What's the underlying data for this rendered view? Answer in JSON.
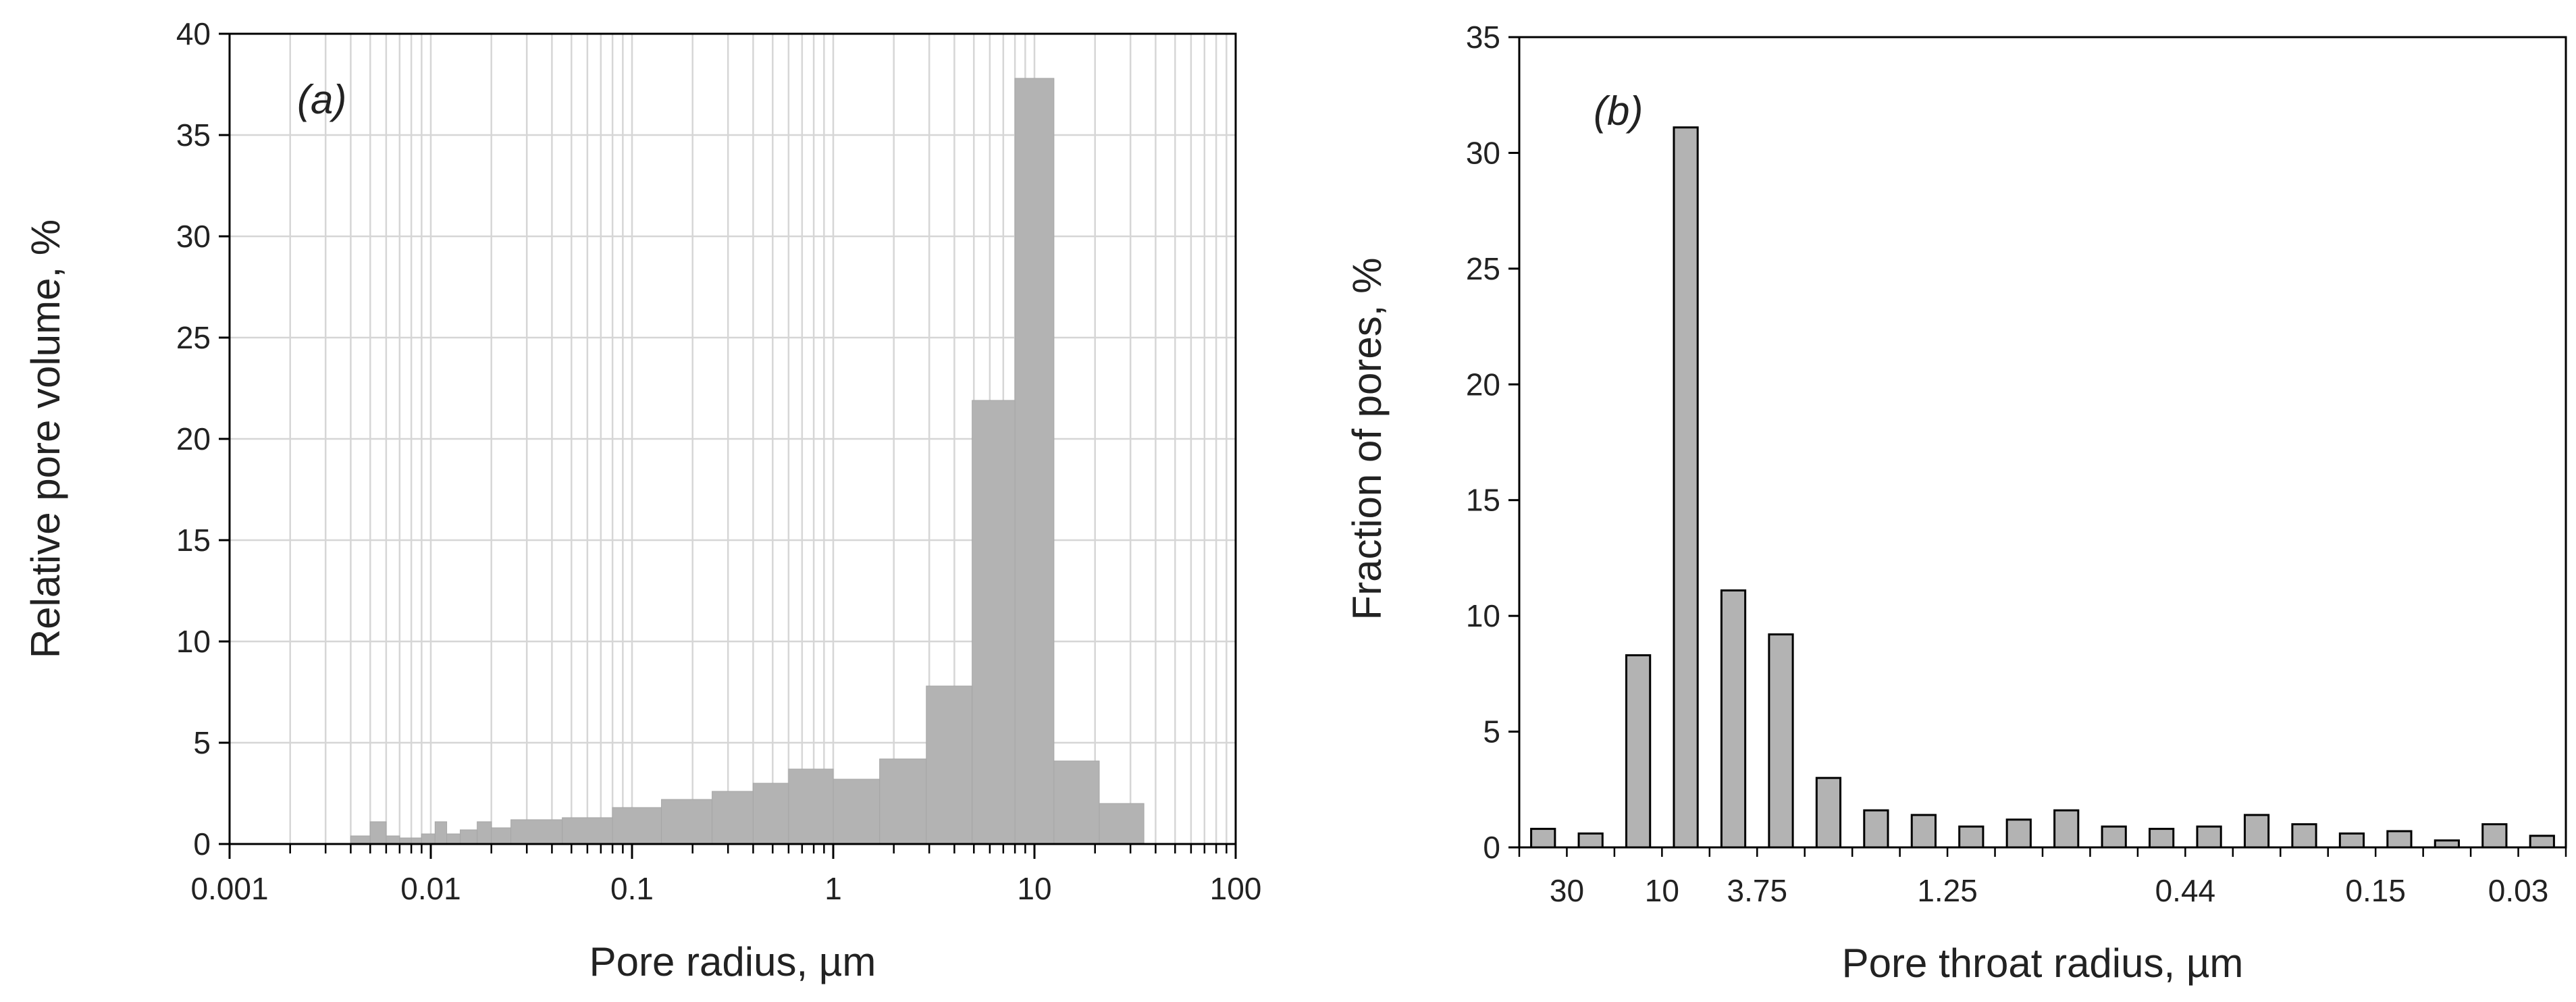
{
  "chart_data": [
    {
      "type": "bar",
      "panel_label": "(a)",
      "xlabel": "Pore radius, µm",
      "ylabel": "Relative pore volume, %",
      "x_scale": "log",
      "xlim": [
        0.001,
        100
      ],
      "ylim": [
        0,
        40
      ],
      "x_ticks": [
        "0.001",
        "0.01",
        "0.1",
        "1",
        "10",
        "100"
      ],
      "y_ticks": [
        "0",
        "5",
        "10",
        "15",
        "20",
        "25",
        "30",
        "35",
        "40"
      ],
      "grid": "on (major and minor, light gray)",
      "bar_color": "#b3b3b3",
      "bins": [
        {
          "x0": 0.004,
          "x1": 0.005,
          "value": 0.4
        },
        {
          "x0": 0.005,
          "x1": 0.006,
          "value": 1.1
        },
        {
          "x0": 0.006,
          "x1": 0.007,
          "value": 0.4
        },
        {
          "x0": 0.007,
          "x1": 0.008,
          "value": 0.3
        },
        {
          "x0": 0.008,
          "x1": 0.009,
          "value": 0.3
        },
        {
          "x0": 0.009,
          "x1": 0.0105,
          "value": 0.5
        },
        {
          "x0": 0.0105,
          "x1": 0.012,
          "value": 1.1
        },
        {
          "x0": 0.012,
          "x1": 0.014,
          "value": 0.5
        },
        {
          "x0": 0.014,
          "x1": 0.017,
          "value": 0.7
        },
        {
          "x0": 0.017,
          "x1": 0.02,
          "value": 1.1
        },
        {
          "x0": 0.02,
          "x1": 0.025,
          "value": 0.8
        },
        {
          "x0": 0.025,
          "x1": 0.045,
          "value": 1.2
        },
        {
          "x0": 0.045,
          "x1": 0.08,
          "value": 1.3
        },
        {
          "x0": 0.08,
          "x1": 0.14,
          "value": 1.8
        },
        {
          "x0": 0.14,
          "x1": 0.25,
          "value": 2.2
        },
        {
          "x0": 0.25,
          "x1": 0.4,
          "value": 2.6
        },
        {
          "x0": 0.4,
          "x1": 0.6,
          "value": 3.0
        },
        {
          "x0": 0.6,
          "x1": 1.0,
          "value": 3.7
        },
        {
          "x0": 1.0,
          "x1": 1.7,
          "value": 3.2
        },
        {
          "x0": 1.7,
          "x1": 2.9,
          "value": 4.2
        },
        {
          "x0": 2.9,
          "x1": 4.9,
          "value": 7.8
        },
        {
          "x0": 4.9,
          "x1": 8.0,
          "value": 21.9
        },
        {
          "x0": 8.0,
          "x1": 12.5,
          "value": 37.8
        },
        {
          "x0": 12.5,
          "x1": 21.0,
          "value": 4.1
        },
        {
          "x0": 21.0,
          "x1": 35.0,
          "value": 2.0
        }
      ]
    },
    {
      "type": "bar",
      "panel_label": "(b)",
      "xlabel": "Pore throat radius, µm",
      "ylabel": "Fraction of pores, %",
      "ylim": [
        0,
        35
      ],
      "y_ticks": [
        "0",
        "5",
        "10",
        "15",
        "20",
        "25",
        "30",
        "35"
      ],
      "x_tick_labels": [
        {
          "index": 1,
          "label": "30"
        },
        {
          "index": 3,
          "label": "10"
        },
        {
          "index": 5,
          "label": "3.75"
        },
        {
          "index": 9,
          "label": "1.25"
        },
        {
          "index": 14,
          "label": "0.44"
        },
        {
          "index": 18,
          "label": "0.15"
        },
        {
          "index": 21,
          "label": "0.03"
        }
      ],
      "bar_color": "#b3b3b3",
      "values": [
        0.8,
        0.6,
        8.3,
        31.1,
        11.1,
        9.2,
        3.0,
        1.6,
        1.4,
        0.9,
        1.2,
        1.6,
        0.9,
        0.8,
        0.9,
        1.4,
        1.0,
        0.6,
        0.7,
        0.3,
        1.0,
        0.5
      ]
    }
  ]
}
